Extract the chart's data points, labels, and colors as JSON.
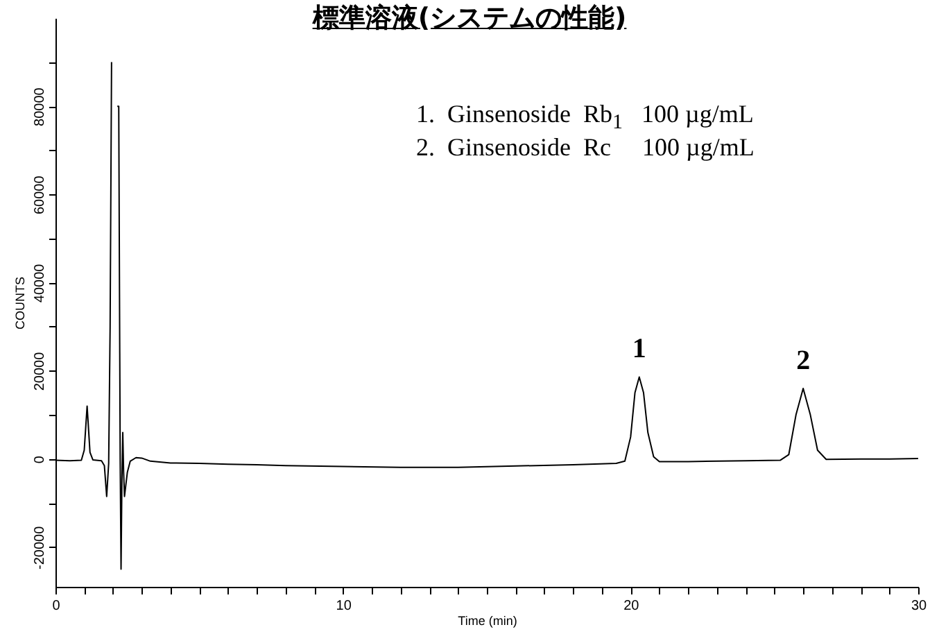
{
  "chart_data": {
    "type": "line",
    "title": "標準溶液(システムの性能)",
    "xlabel": "Time (min)",
    "ylabel": "COUNTS",
    "x": [
      0,
      0.5,
      0.9,
      1.0,
      1.1,
      1.2,
      1.3,
      1.6,
      1.7,
      1.78,
      1.85,
      1.9,
      1.95,
      2.0,
      2.1,
      2.15,
      2.2,
      2.25,
      2.28,
      2.31,
      2.34,
      2.37,
      2.4,
      2.5,
      2.6,
      2.8,
      3.0,
      3.3,
      4,
      5,
      6,
      7,
      8,
      10,
      12,
      14,
      16,
      18,
      19.5,
      19.8,
      20.0,
      20.15,
      20.3,
      20.45,
      20.6,
      20.8,
      21.0,
      22,
      24,
      25.2,
      25.5,
      25.75,
      26.0,
      26.25,
      26.5,
      26.8,
      28,
      29,
      30
    ],
    "series": [
      {
        "color": "#000000",
        "values": [
          -300,
          -400,
          -300,
          2000,
          12000,
          1500,
          -200,
          -400,
          -1500,
          -8500,
          -1000,
          30000,
          90000,
          null,
          null,
          80000,
          80000,
          0,
          -25000,
          -5000,
          6000,
          -3000,
          -8500,
          -3000,
          -500,
          300,
          200,
          -500,
          -900,
          -1000,
          -1200,
          -1300,
          -1500,
          -1700,
          -1900,
          -1900,
          -1600,
          -1300,
          -1000,
          -500,
          5000,
          15000,
          18600,
          15000,
          6000,
          500,
          -600,
          -600,
          -400,
          -300,
          1000,
          10000,
          16000,
          10000,
          2000,
          -100,
          0,
          0,
          100
        ]
      }
    ],
    "xlim": [
      0,
      30
    ],
    "ylim": [
      -29000,
      100000
    ],
    "xticks": [
      0,
      {
        "value": 1,
        "label": null
      },
      {
        "value": 2,
        "label": null
      },
      {
        "value": 3,
        "label": null
      },
      {
        "value": 4,
        "label": null
      },
      {
        "value": 5,
        "label": null
      },
      {
        "value": 6,
        "label": null
      },
      {
        "value": 7,
        "label": null
      },
      {
        "value": 8,
        "label": null
      },
      {
        "value": 9,
        "label": null
      },
      10,
      {
        "value": 11,
        "label": null
      },
      {
        "value": 12,
        "label": null
      },
      {
        "value": 13,
        "label": null
      },
      {
        "value": 14,
        "label": null
      },
      {
        "value": 15,
        "label": null
      },
      {
        "value": 16,
        "label": null
      },
      {
        "value": 17,
        "label": null
      },
      {
        "value": 18,
        "label": null
      },
      {
        "value": 19,
        "label": null
      },
      20,
      {
        "value": 21,
        "label": null
      },
      {
        "value": 22,
        "label": null
      },
      {
        "value": 23,
        "label": null
      },
      {
        "value": 24,
        "label": null
      },
      {
        "value": 25,
        "label": null
      },
      {
        "value": 26,
        "label": null
      },
      {
        "value": 27,
        "label": null
      },
      {
        "value": 28,
        "label": null
      },
      {
        "value": 29,
        "label": null
      },
      30
    ],
    "yticks": [
      -20000,
      {
        "value": -10000,
        "label": null
      },
      0,
      {
        "value": 10000,
        "label": null
      },
      20000,
      {
        "value": 30000,
        "label": null
      },
      40000,
      {
        "value": 50000,
        "label": null
      },
      60000,
      {
        "value": 70000,
        "label": null
      },
      80000,
      {
        "value": 90000,
        "label": null
      }
    ],
    "grid": false,
    "marker": "none",
    "line_style": "solid",
    "annotations": [
      "1.  Ginsenoside  Rb$_{1}$   100 µg/mL",
      "2.  Ginsenoside  Rc     100 µg/mL",
      {
        "text": "1",
        "x": 20.3,
        "y": 18600
      },
      {
        "text": "2",
        "x": 26,
        "y": 16000
      }
    ]
  }
}
